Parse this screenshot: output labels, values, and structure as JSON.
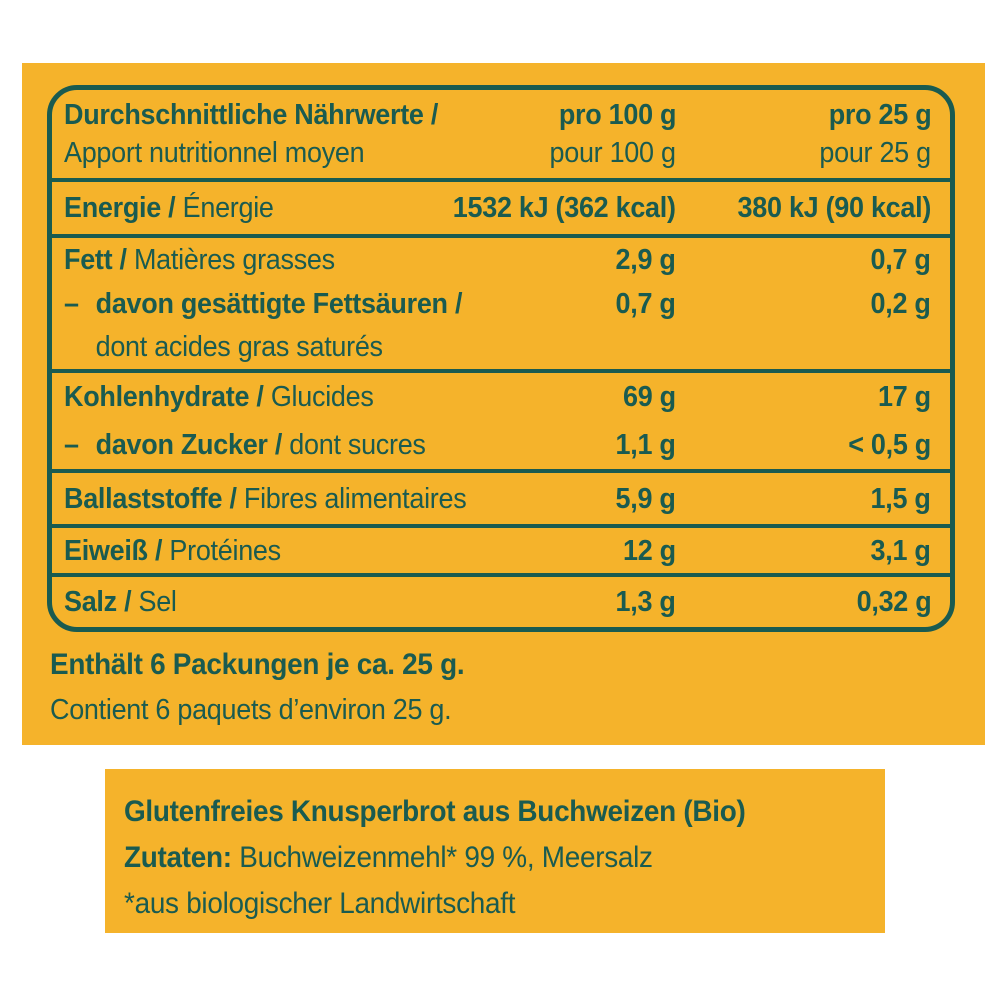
{
  "colors": {
    "page_background": "#FFFFFF",
    "panel_yellow": "#F5B32B",
    "ink_teal": "#1A5B50"
  },
  "table": {
    "header": {
      "title_de": "Durchschnittliche Nährwerte /",
      "title_fr": "Apport nutritionnel moyen",
      "per100_de": "pro 100 g",
      "per100_fr": "pour 100 g",
      "per25_de": "pro 25 g",
      "per25_fr": "pour 25 g"
    },
    "rows": [
      {
        "id": "energie",
        "de": "Energie /",
        "fr": "Énergie",
        "per100": "1532 kJ (362 kcal)",
        "per25": "380 kJ (90 kcal)"
      },
      {
        "id": "fett",
        "de": "Fett /",
        "fr": "Matières grasses",
        "per100": "2,9 g",
        "per25": "0,7 g",
        "sub": {
          "dash": "–",
          "de": "davon gesättigte Fettsäuren /",
          "per100": "0,7 g",
          "per25": "0,2 g",
          "fr": "dont acides gras saturés"
        }
      },
      {
        "id": "kohlenhydrate",
        "de": "Kohlenhydrate /",
        "fr": "Glucides",
        "per100": "69 g",
        "per25": "17 g",
        "sub": {
          "dash": "–",
          "de": "davon Zucker /",
          "fr": "dont sucres",
          "per100": "1,1 g",
          "per25": "< 0,5 g"
        }
      },
      {
        "id": "ballaststoffe",
        "de": "Ballaststoffe /",
        "fr": "Fibres alimentaires",
        "per100": "5,9 g",
        "per25": "1,5 g"
      },
      {
        "id": "eiweiss",
        "de": "Eiweiß /",
        "fr": "Protéines",
        "per100": "12 g",
        "per25": "3,1 g"
      },
      {
        "id": "salz",
        "de": "Salz /",
        "fr": "Sel",
        "per100": "1,3 g",
        "per25": "0,32 g"
      }
    ]
  },
  "notes": {
    "contains_de": "Enthält 6 Packungen je ca. 25 g.",
    "contains_fr": "Contient 6 paquets d’environ 25 g."
  },
  "ingredients": {
    "title": "Glutenfreies Knusperbrot aus Buchweizen (Bio)",
    "zutaten_label": "Zutaten:",
    "zutaten_value": "Buchweizenmehl* 99 %, Meersalz",
    "footnote": "*aus biologischer Landwirtschaft"
  }
}
